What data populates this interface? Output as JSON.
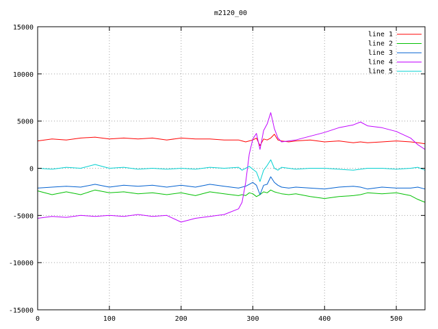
{
  "chart_data": {
    "type": "line",
    "title": "m2120_00",
    "xlabel": "",
    "ylabel": "",
    "xlim": [
      0,
      540
    ],
    "ylim": [
      -15000,
      15000
    ],
    "x_ticks": [
      0,
      100,
      200,
      300,
      400,
      500
    ],
    "y_ticks": [
      -15000,
      -10000,
      -5000,
      0,
      5000,
      10000,
      15000
    ],
    "grid": true,
    "legend_position": "top-right",
    "x": [
      0,
      20,
      40,
      60,
      80,
      100,
      120,
      140,
      160,
      180,
      200,
      220,
      240,
      260,
      280,
      285,
      290,
      295,
      300,
      305,
      310,
      315,
      320,
      325,
      330,
      335,
      340,
      350,
      360,
      380,
      400,
      420,
      440,
      450,
      460,
      480,
      500,
      520,
      530,
      540
    ],
    "series": [
      {
        "name": "line 1",
        "color": "#ff0000",
        "values": [
          2900,
          3100,
          3000,
          3200,
          3300,
          3100,
          3200,
          3100,
          3200,
          3000,
          3200,
          3100,
          3100,
          3000,
          3000,
          2900,
          2800,
          2900,
          3000,
          3200,
          2400,
          3100,
          3000,
          3200,
          3600,
          3000,
          2900,
          2800,
          2900,
          3000,
          2800,
          2900,
          2700,
          2800,
          2700,
          2800,
          2900,
          2800,
          2700,
          2600
        ]
      },
      {
        "name": "line 2",
        "color": "#00c000",
        "values": [
          -2400,
          -2800,
          -2500,
          -2800,
          -2300,
          -2600,
          -2500,
          -2700,
          -2600,
          -2800,
          -2600,
          -2900,
          -2500,
          -2700,
          -2900,
          -2800,
          -2900,
          -2600,
          -2700,
          -3000,
          -2800,
          -2500,
          -2600,
          -2300,
          -2500,
          -2600,
          -2700,
          -2800,
          -2700,
          -3000,
          -3200,
          -3000,
          -2900,
          -2800,
          -2600,
          -2700,
          -2600,
          -2900,
          -3300,
          -3600
        ]
      },
      {
        "name": "line 3",
        "color": "#0060d0",
        "values": [
          -2100,
          -2000,
          -1900,
          -2000,
          -1700,
          -2000,
          -1800,
          -1900,
          -1800,
          -2000,
          -1800,
          -2000,
          -1700,
          -1900,
          -2100,
          -2000,
          -1900,
          -1700,
          -1500,
          -1800,
          -2800,
          -1800,
          -1700,
          -900,
          -1500,
          -1800,
          -2000,
          -2100,
          -2000,
          -2100,
          -2200,
          -2000,
          -1900,
          -2000,
          -2200,
          -2000,
          -2100,
          -2100,
          -2000,
          -2200
        ]
      },
      {
        "name": "line 4",
        "color": "#c000ff",
        "values": [
          -5300,
          -5100,
          -5200,
          -5000,
          -5100,
          -5000,
          -5100,
          -4900,
          -5100,
          -5000,
          -5700,
          -5300,
          -5100,
          -4900,
          -4300,
          -3600,
          -1500,
          1500,
          3100,
          3700,
          2000,
          4000,
          4700,
          5900,
          4200,
          3200,
          2800,
          2900,
          3000,
          3400,
          3800,
          4300,
          4600,
          4900,
          4500,
          4300,
          3900,
          3200,
          2500,
          2000
        ]
      },
      {
        "name": "line 5",
        "color": "#00d0d0",
        "values": [
          0,
          -100,
          100,
          0,
          400,
          0,
          100,
          -100,
          0,
          -100,
          0,
          -100,
          100,
          0,
          100,
          -200,
          0,
          200,
          -100,
          -400,
          -1400,
          -200,
          300,
          900,
          0,
          -200,
          100,
          0,
          -100,
          0,
          0,
          -100,
          -200,
          -100,
          0,
          0,
          -100,
          0,
          100,
          -200
        ]
      }
    ]
  }
}
